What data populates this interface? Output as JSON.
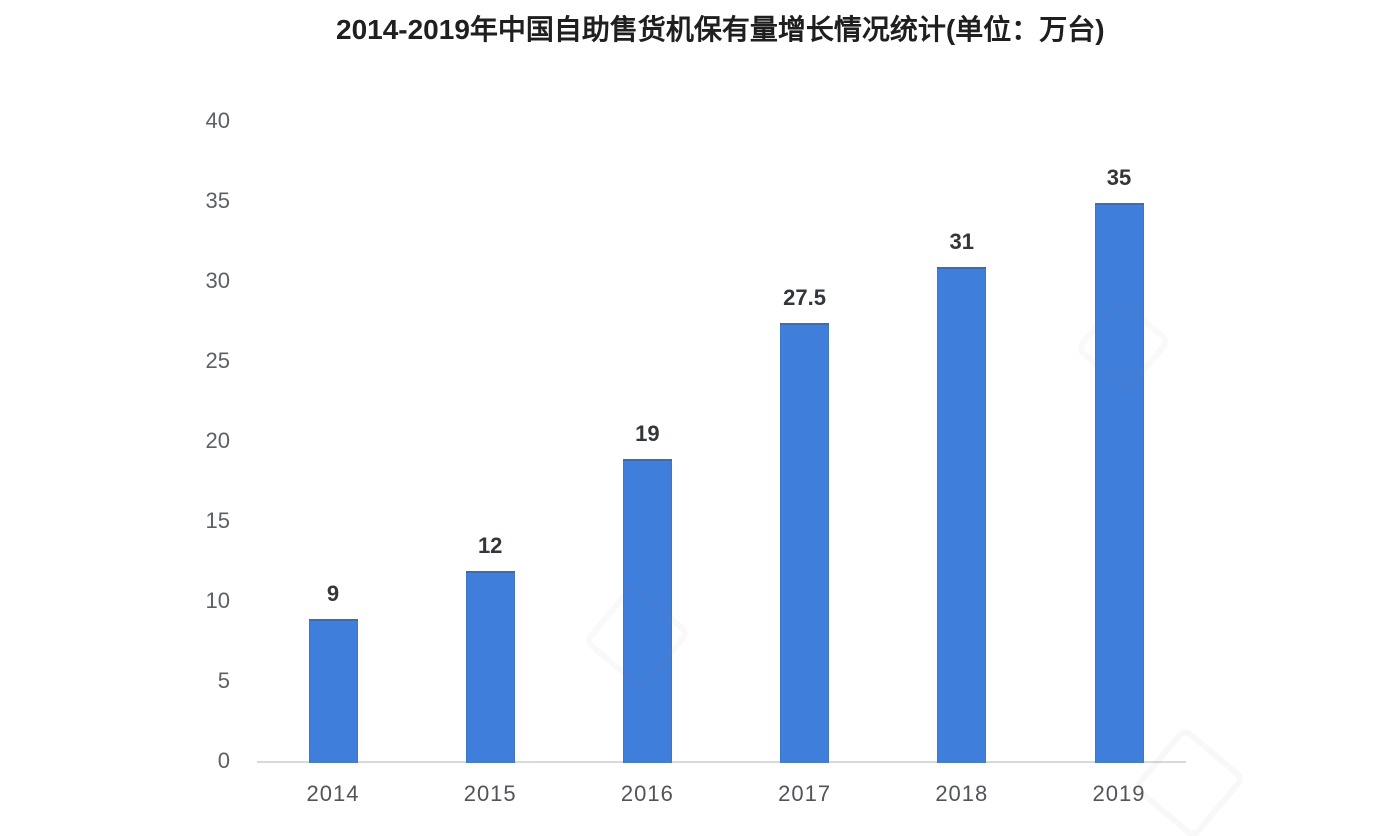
{
  "chart_data": {
    "type": "bar",
    "title": "2014-2019年中国自助售货机保有量增长情况统计(单位：万台)",
    "categories": [
      "2014",
      "2015",
      "2016",
      "2017",
      "2018",
      "2019"
    ],
    "values": [
      9,
      12,
      19,
      27.5,
      31,
      35
    ],
    "value_labels": [
      "9",
      "12",
      "19",
      "27.5",
      "31",
      "35"
    ],
    "y_ticks": [
      40,
      35,
      30,
      25,
      20,
      15,
      10,
      5,
      0
    ],
    "ylim": [
      0,
      40
    ],
    "xlabel": "",
    "ylabel": "",
    "unit": "万台",
    "grid": "off",
    "legend": "none",
    "colors": {
      "bar": "#3f7edb",
      "title": "#1f1f1f",
      "axis_label": "#5c6064",
      "tick_label": "#515458",
      "value_label": "#33363a",
      "axis_line": "#d9d9d9",
      "background": "#ffffff"
    }
  }
}
